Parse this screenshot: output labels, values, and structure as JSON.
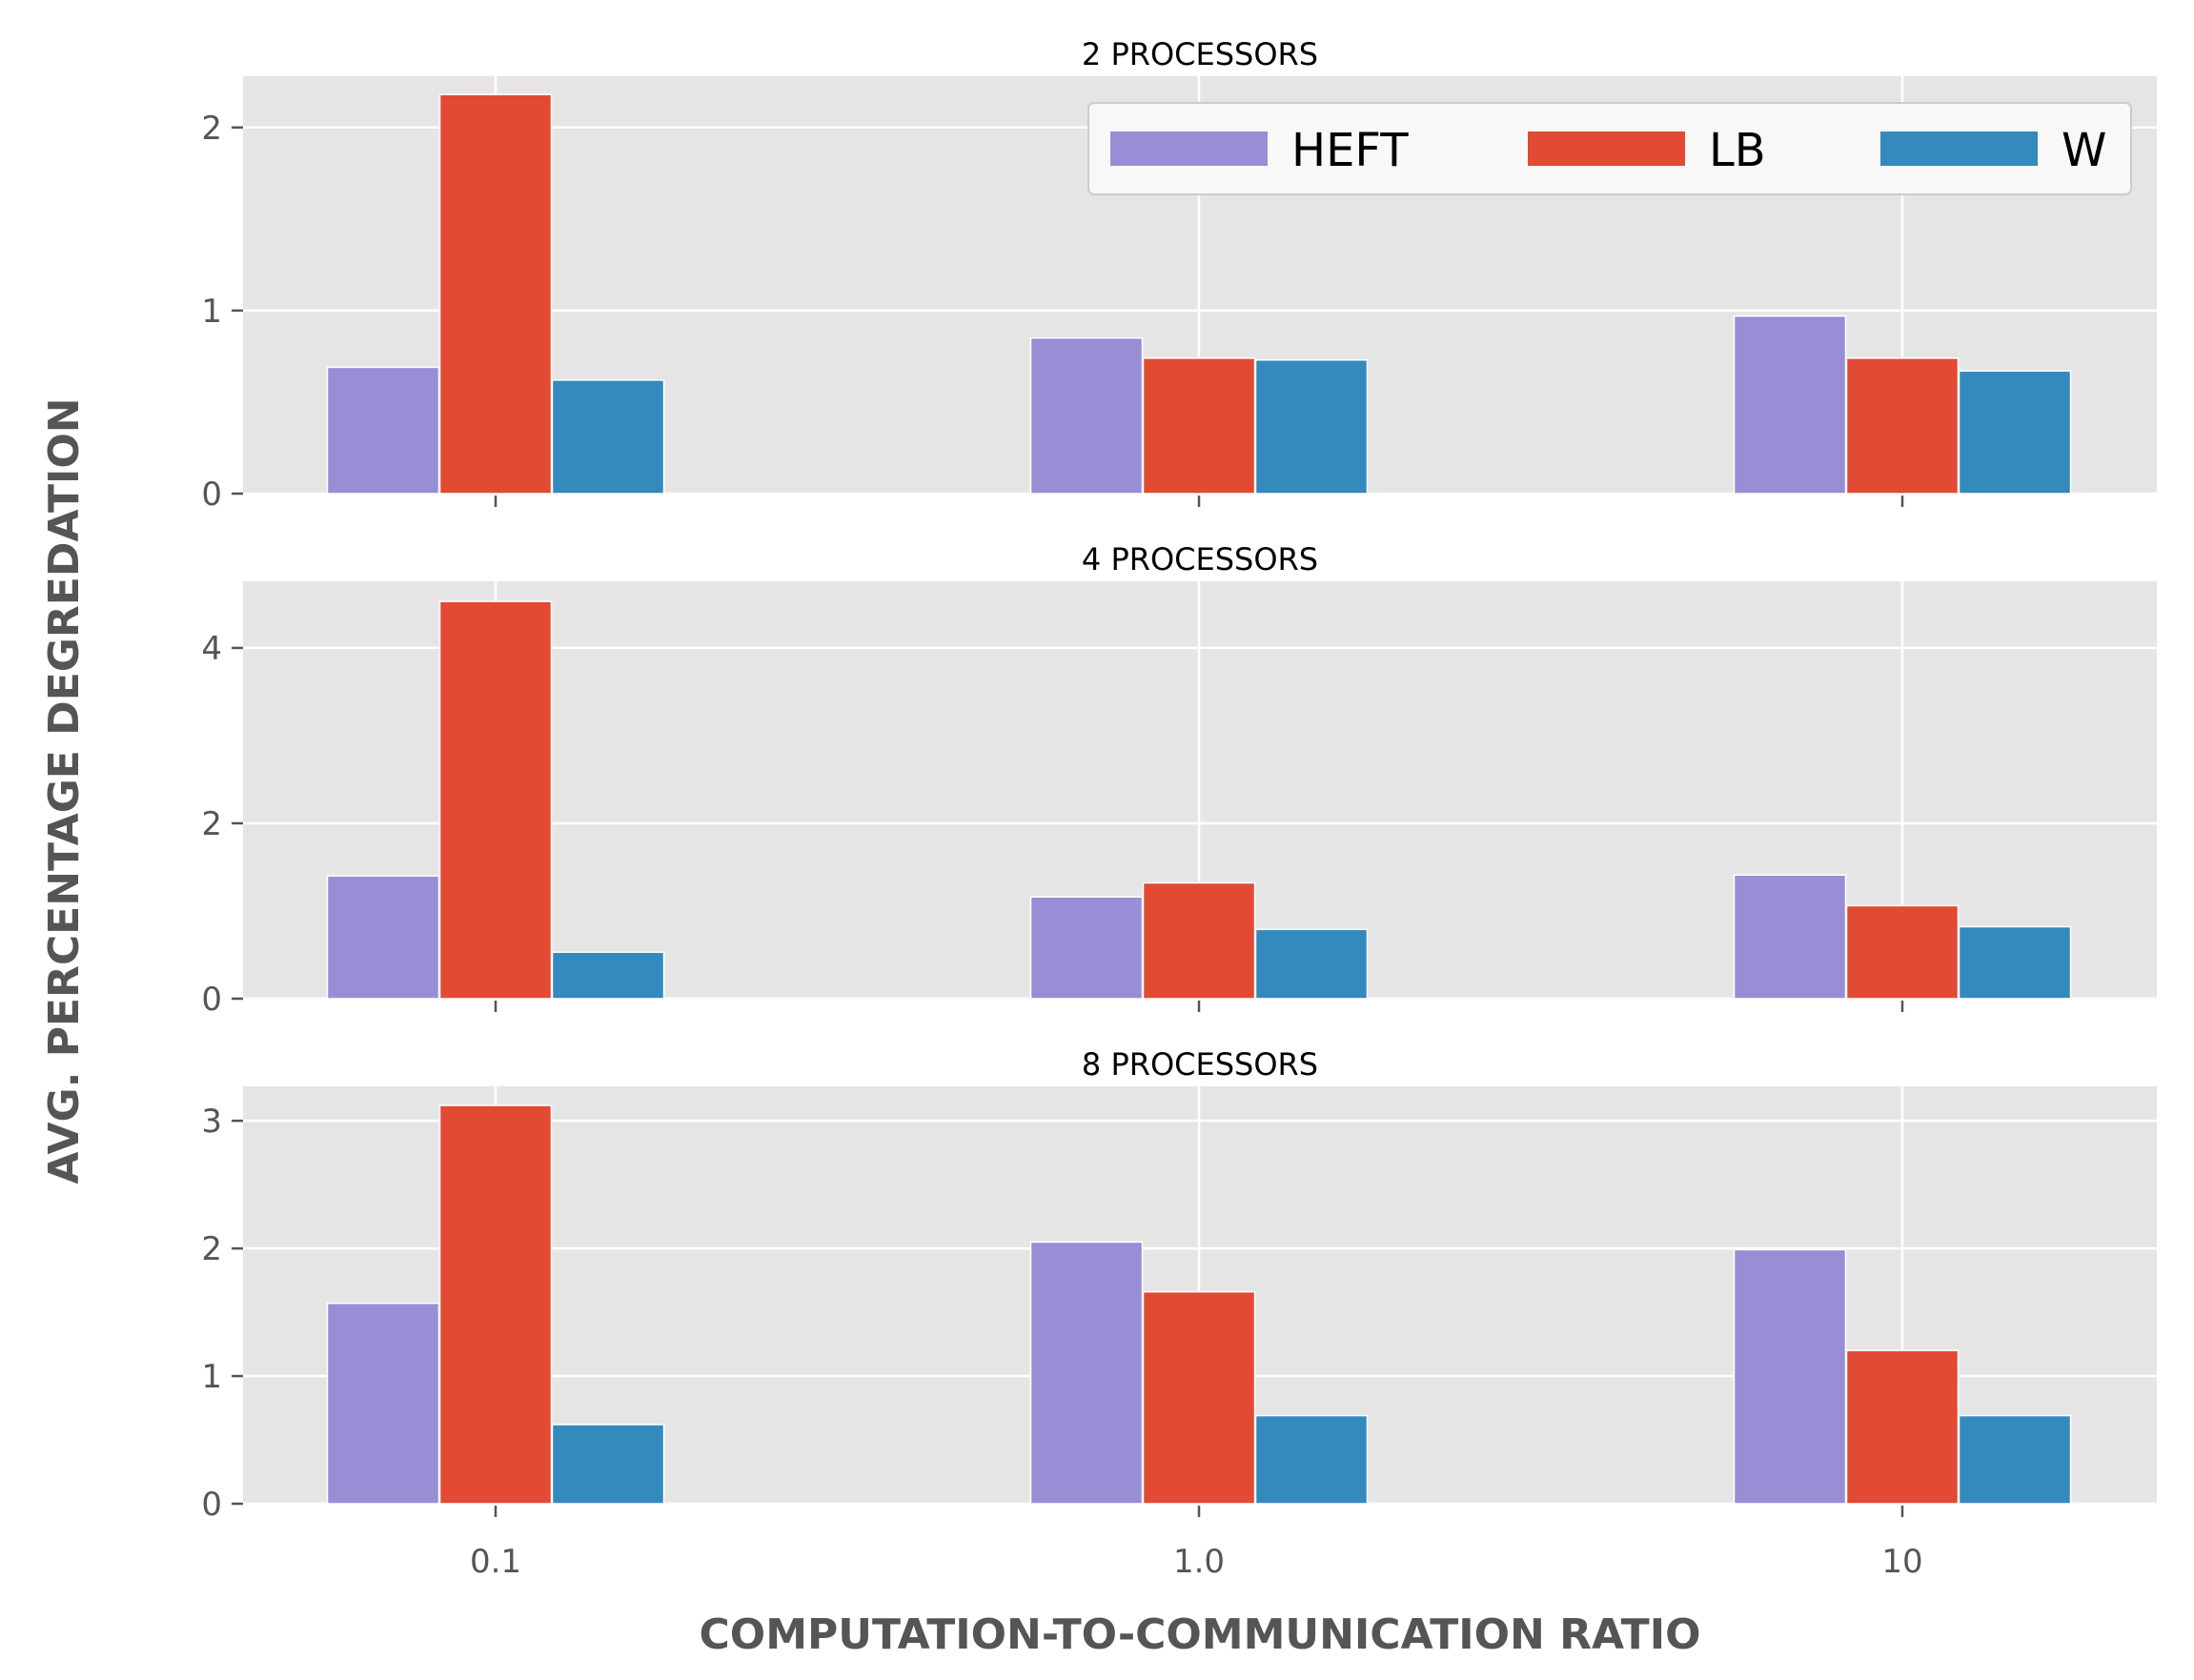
{
  "chart_data": {
    "type": "bar",
    "xlabel": "COMPUTATION-TO-COMMUNICATION RATIO",
    "ylabel": "AVG. PERCENTAGE DEGREDATION",
    "categories": [
      "0.1",
      "1.0",
      "10"
    ],
    "legend": {
      "placement": "top-right",
      "entries": [
        {
          "name": "HEFT",
          "color": "#988ED5"
        },
        {
          "name": "LB",
          "color": "#E24A33"
        },
        {
          "name": "W",
          "color": "#348ABD"
        }
      ]
    },
    "grid": true,
    "panels": [
      {
        "title": "2 PROCESSORS",
        "ylim": [
          0,
          2.28
        ],
        "yticks": [
          "0",
          "1",
          "2"
        ],
        "series": [
          {
            "name": "HEFT",
            "values": [
              0.69,
              0.85,
              0.97
            ]
          },
          {
            "name": "LB",
            "values": [
              2.18,
              0.74,
              0.74
            ]
          },
          {
            "name": "W",
            "values": [
              0.62,
              0.73,
              0.67
            ]
          }
        ]
      },
      {
        "title": "4 PROCESSORS",
        "ylim": [
          0,
          4.76
        ],
        "yticks": [
          "0",
          "2",
          "4"
        ],
        "series": [
          {
            "name": "HEFT",
            "values": [
              1.4,
              1.16,
              1.41
            ]
          },
          {
            "name": "LB",
            "values": [
              4.53,
              1.32,
              1.06
            ]
          },
          {
            "name": "W",
            "values": [
              0.53,
              0.79,
              0.82
            ]
          }
        ]
      },
      {
        "title": "8 PROCESSORS",
        "ylim": [
          0,
          3.27
        ],
        "yticks": [
          "0",
          "1",
          "2",
          "3"
        ],
        "series": [
          {
            "name": "HEFT",
            "values": [
              1.57,
              2.05,
              1.99
            ]
          },
          {
            "name": "LB",
            "values": [
              3.12,
              1.66,
              1.2
            ]
          },
          {
            "name": "W",
            "values": [
              0.62,
              0.69,
              0.69
            ]
          }
        ]
      }
    ]
  }
}
